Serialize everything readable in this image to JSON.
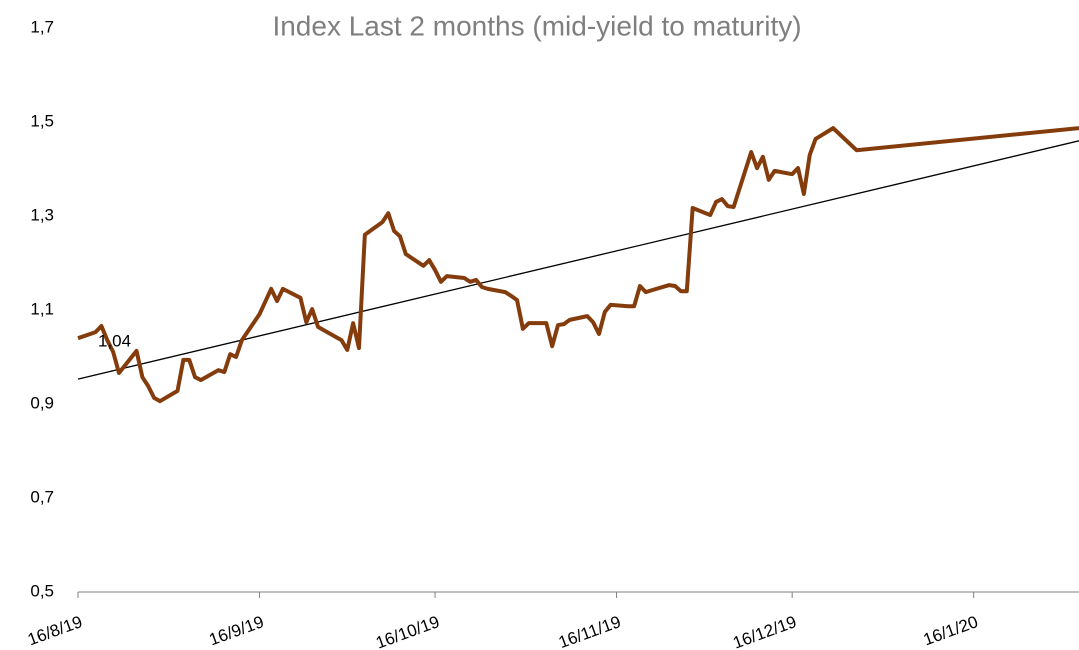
{
  "chart_data": {
    "type": "line",
    "title": "Index Last 2 months  (mid-yield to maturity)",
    "color": "#843c0c",
    "x": [
      "2019-08-16",
      "2019-08-19",
      "2019-08-20",
      "2019-08-21",
      "2019-08-22",
      "2019-08-23",
      "2019-08-26",
      "2019-08-27",
      "2019-08-28",
      "2019-08-29",
      "2019-08-30",
      "2019-09-02",
      "2019-09-03",
      "2019-09-04",
      "2019-09-05",
      "2019-09-06",
      "2019-09-09",
      "2019-09-10",
      "2019-09-11",
      "2019-09-12",
      "2019-09-13",
      "2019-09-16",
      "2019-09-17",
      "2019-09-18",
      "2019-09-19",
      "2019-09-20",
      "2019-09-23",
      "2019-09-24",
      "2019-09-25",
      "2019-09-26",
      "2019-09-27",
      "2019-09-30",
      "2019-10-01",
      "2019-10-02",
      "2019-10-03",
      "2019-10-04",
      "2019-10-07",
      "2019-10-08",
      "2019-10-09",
      "2019-10-10",
      "2019-10-11",
      "2019-10-14",
      "2019-10-15",
      "2019-10-16",
      "2019-10-17",
      "2019-10-18",
      "2019-10-21",
      "2019-10-22",
      "2019-10-23",
      "2019-10-24",
      "2019-10-25",
      "2019-10-28",
      "2019-10-29",
      "2019-10-30",
      "2019-10-31",
      "2019-11-01",
      "2019-11-04",
      "2019-11-05",
      "2019-11-06",
      "2019-11-07",
      "2019-11-08",
      "2019-11-11",
      "2019-11-12",
      "2019-11-13",
      "2019-11-14",
      "2019-11-15",
      "2019-11-18",
      "2019-11-19",
      "2019-11-20",
      "2019-11-21",
      "2019-11-22",
      "2019-11-25",
      "2019-11-26",
      "2019-11-27",
      "2019-11-28",
      "2019-11-29",
      "2019-12-02",
      "2019-12-03",
      "2019-12-04",
      "2019-12-05",
      "2019-12-06",
      "2019-12-09",
      "2019-12-10",
      "2019-12-11",
      "2019-12-12",
      "2019-12-13",
      "2019-12-16",
      "2019-12-17",
      "2019-12-18",
      "2019-12-19",
      "2019-12-20",
      "2019-12-23",
      "2019-12-27",
      "2020-02-03"
    ],
    "values": [
      1.04,
      1.053,
      1.066,
      1.036,
      1.011,
      0.966,
      1.013,
      0.957,
      0.938,
      0.913,
      0.906,
      0.928,
      0.994,
      0.994,
      0.957,
      0.951,
      0.972,
      0.968,
      1.006,
      1.0,
      1.036,
      1.091,
      1.118,
      1.145,
      1.119,
      1.145,
      1.126,
      1.074,
      1.102,
      1.064,
      1.057,
      1.036,
      1.015,
      1.072,
      1.019,
      1.26,
      1.287,
      1.306,
      1.268,
      1.257,
      1.219,
      1.194,
      1.206,
      1.185,
      1.16,
      1.172,
      1.168,
      1.16,
      1.164,
      1.149,
      1.145,
      1.138,
      1.13,
      1.121,
      1.06,
      1.072,
      1.072,
      1.023,
      1.068,
      1.07,
      1.079,
      1.087,
      1.074,
      1.049,
      1.096,
      1.111,
      1.108,
      1.108,
      1.151,
      1.138,
      1.142,
      1.153,
      1.151,
      1.14,
      1.14,
      1.317,
      1.302,
      1.33,
      1.336,
      1.321,
      1.319,
      1.436,
      1.402,
      1.426,
      1.377,
      1.396,
      1.389,
      1.402,
      1.347,
      1.43,
      1.464,
      1.487,
      1.44,
      1.487
    ],
    "value_labels": [
      "1,04",
      null,
      null,
      null,
      null,
      null,
      null,
      null,
      null,
      null,
      null,
      null,
      null,
      null,
      null,
      null,
      null,
      null,
      null,
      null,
      null,
      null,
      null,
      null,
      null,
      null,
      null,
      null,
      null,
      null,
      null,
      null,
      null,
      null,
      null,
      null,
      null,
      null,
      null,
      null,
      null,
      null,
      null,
      null,
      null,
      null,
      null,
      null,
      null,
      null,
      null,
      null,
      null,
      null,
      null,
      null,
      null,
      null,
      null,
      null,
      null,
      null,
      null,
      null,
      null,
      null,
      null,
      null,
      null,
      null,
      null,
      null,
      null,
      null,
      null,
      null,
      null,
      null,
      null,
      null,
      null,
      null,
      null,
      null,
      null,
      null,
      null,
      null,
      null,
      null,
      null,
      null,
      null,
      null
    ],
    "trendline": {
      "x": [
        "2019-08-16",
        "2020-02-03"
      ],
      "values": [
        0.953,
        1.46
      ],
      "color": "#000000"
    },
    "xlim": [
      "2019-08-16",
      "2020-02-03"
    ],
    "xticks": [
      {
        "value": "2019-08-16",
        "label": "16/8/19"
      },
      {
        "value": "2019-09-16",
        "label": "16/9/19"
      },
      {
        "value": "2019-10-16",
        "label": "16/10/19"
      },
      {
        "value": "2019-11-16",
        "label": "16/11/19"
      },
      {
        "value": "2019-12-16",
        "label": "16/12/19"
      },
      {
        "value": "2020-01-16",
        "label": "16/1/20"
      }
    ],
    "ylim": [
      0.5,
      1.7
    ],
    "yticks": [
      {
        "value": 0.5,
        "label": "0,5"
      },
      {
        "value": 0.7,
        "label": "0,7"
      },
      {
        "value": 0.9,
        "label": "0,9"
      },
      {
        "value": 1.1,
        "label": "1,1"
      },
      {
        "value": 1.3,
        "label": "1,3"
      },
      {
        "value": 1.5,
        "label": "1,5"
      },
      {
        "value": 1.7,
        "label": "1,7"
      }
    ],
    "grid": false
  }
}
